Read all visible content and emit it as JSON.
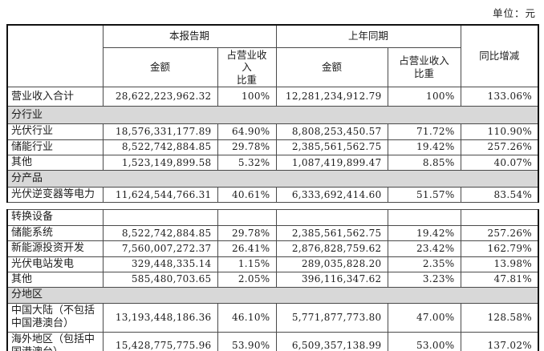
{
  "unit_label": "单位：元",
  "colors": {
    "section_bg": "#d8d8d8",
    "border": "#4a4a4a",
    "text": "#1c1c1c"
  },
  "table": {
    "header": {
      "current_period": "本报告期",
      "prior_period": "上年同期",
      "yoy": "同比增减",
      "amount": "金额",
      "share": "占营业收入\n比重"
    },
    "part1_rows": [
      {
        "type": "data",
        "label": "营业收入合计",
        "amount1": "28,622,223,962.32",
        "share1": "100%",
        "amount2": "12,281,234,912.79",
        "share2": "100%",
        "yoy": "133.06%"
      },
      {
        "type": "section",
        "label": "分行业"
      },
      {
        "type": "data",
        "label": "光伏行业",
        "amount1": "18,576,331,177.89",
        "share1": "64.90%",
        "amount2": "8,808,253,450.57",
        "share2": "71.72%",
        "yoy": "110.90%"
      },
      {
        "type": "data",
        "label": "储能行业",
        "amount1": "8,522,742,884.85",
        "share1": "29.78%",
        "amount2": "2,385,561,562.75",
        "share2": "19.42%",
        "yoy": "257.26%"
      },
      {
        "type": "data",
        "label": "其他",
        "amount1": "1,523,149,899.58",
        "share1": "5.32%",
        "amount2": "1,087,419,899.47",
        "share2": "8.85%",
        "yoy": "40.07%"
      },
      {
        "type": "section",
        "label": "分产品"
      },
      {
        "type": "data",
        "label": "光伏逆变器等电力",
        "amount1": "11,624,544,766.31",
        "share1": "40.61%",
        "amount2": "6,333,692,414.60",
        "share2": "51.57%",
        "yoy": "83.54%"
      }
    ],
    "part2_rows": [
      {
        "type": "data",
        "label": "转换设备",
        "amount1": "",
        "share1": "",
        "amount2": "",
        "share2": "",
        "yoy": ""
      },
      {
        "type": "data",
        "label": "储能系统",
        "amount1": "8,522,742,884.85",
        "share1": "29.78%",
        "amount2": "2,385,561,562.75",
        "share2": "19.42%",
        "yoy": "257.26%"
      },
      {
        "type": "data",
        "label": "新能源投资开发",
        "amount1": "7,560,007,272.37",
        "share1": "26.41%",
        "amount2": "2,876,828,759.62",
        "share2": "23.42%",
        "yoy": "162.79%"
      },
      {
        "type": "data",
        "label": "光伏电站发电",
        "amount1": "329,448,335.14",
        "share1": "1.15%",
        "amount2": "289,035,828.20",
        "share2": "2.35%",
        "yoy": "13.98%"
      },
      {
        "type": "data",
        "label": "其他",
        "amount1": "585,480,703.65",
        "share1": "2.05%",
        "amount2": "396,116,347.62",
        "share2": "3.23%",
        "yoy": "47.81%"
      },
      {
        "type": "section",
        "label": "分地区"
      },
      {
        "type": "data",
        "label": "中国大陆（不包括\n中国港澳台）",
        "amount1": "13,193,448,186.36",
        "share1": "46.10%",
        "amount2": "5,771,877,773.80",
        "share2": "47.00%",
        "yoy": "128.58%"
      },
      {
        "type": "data",
        "label": "海外地区（包括中\n国港澳台）",
        "amount1": "15,428,775,775.96",
        "share1": "53.90%",
        "amount2": "6,509,357,138.99",
        "share2": "53.00%",
        "yoy": "137.02%"
      }
    ]
  }
}
